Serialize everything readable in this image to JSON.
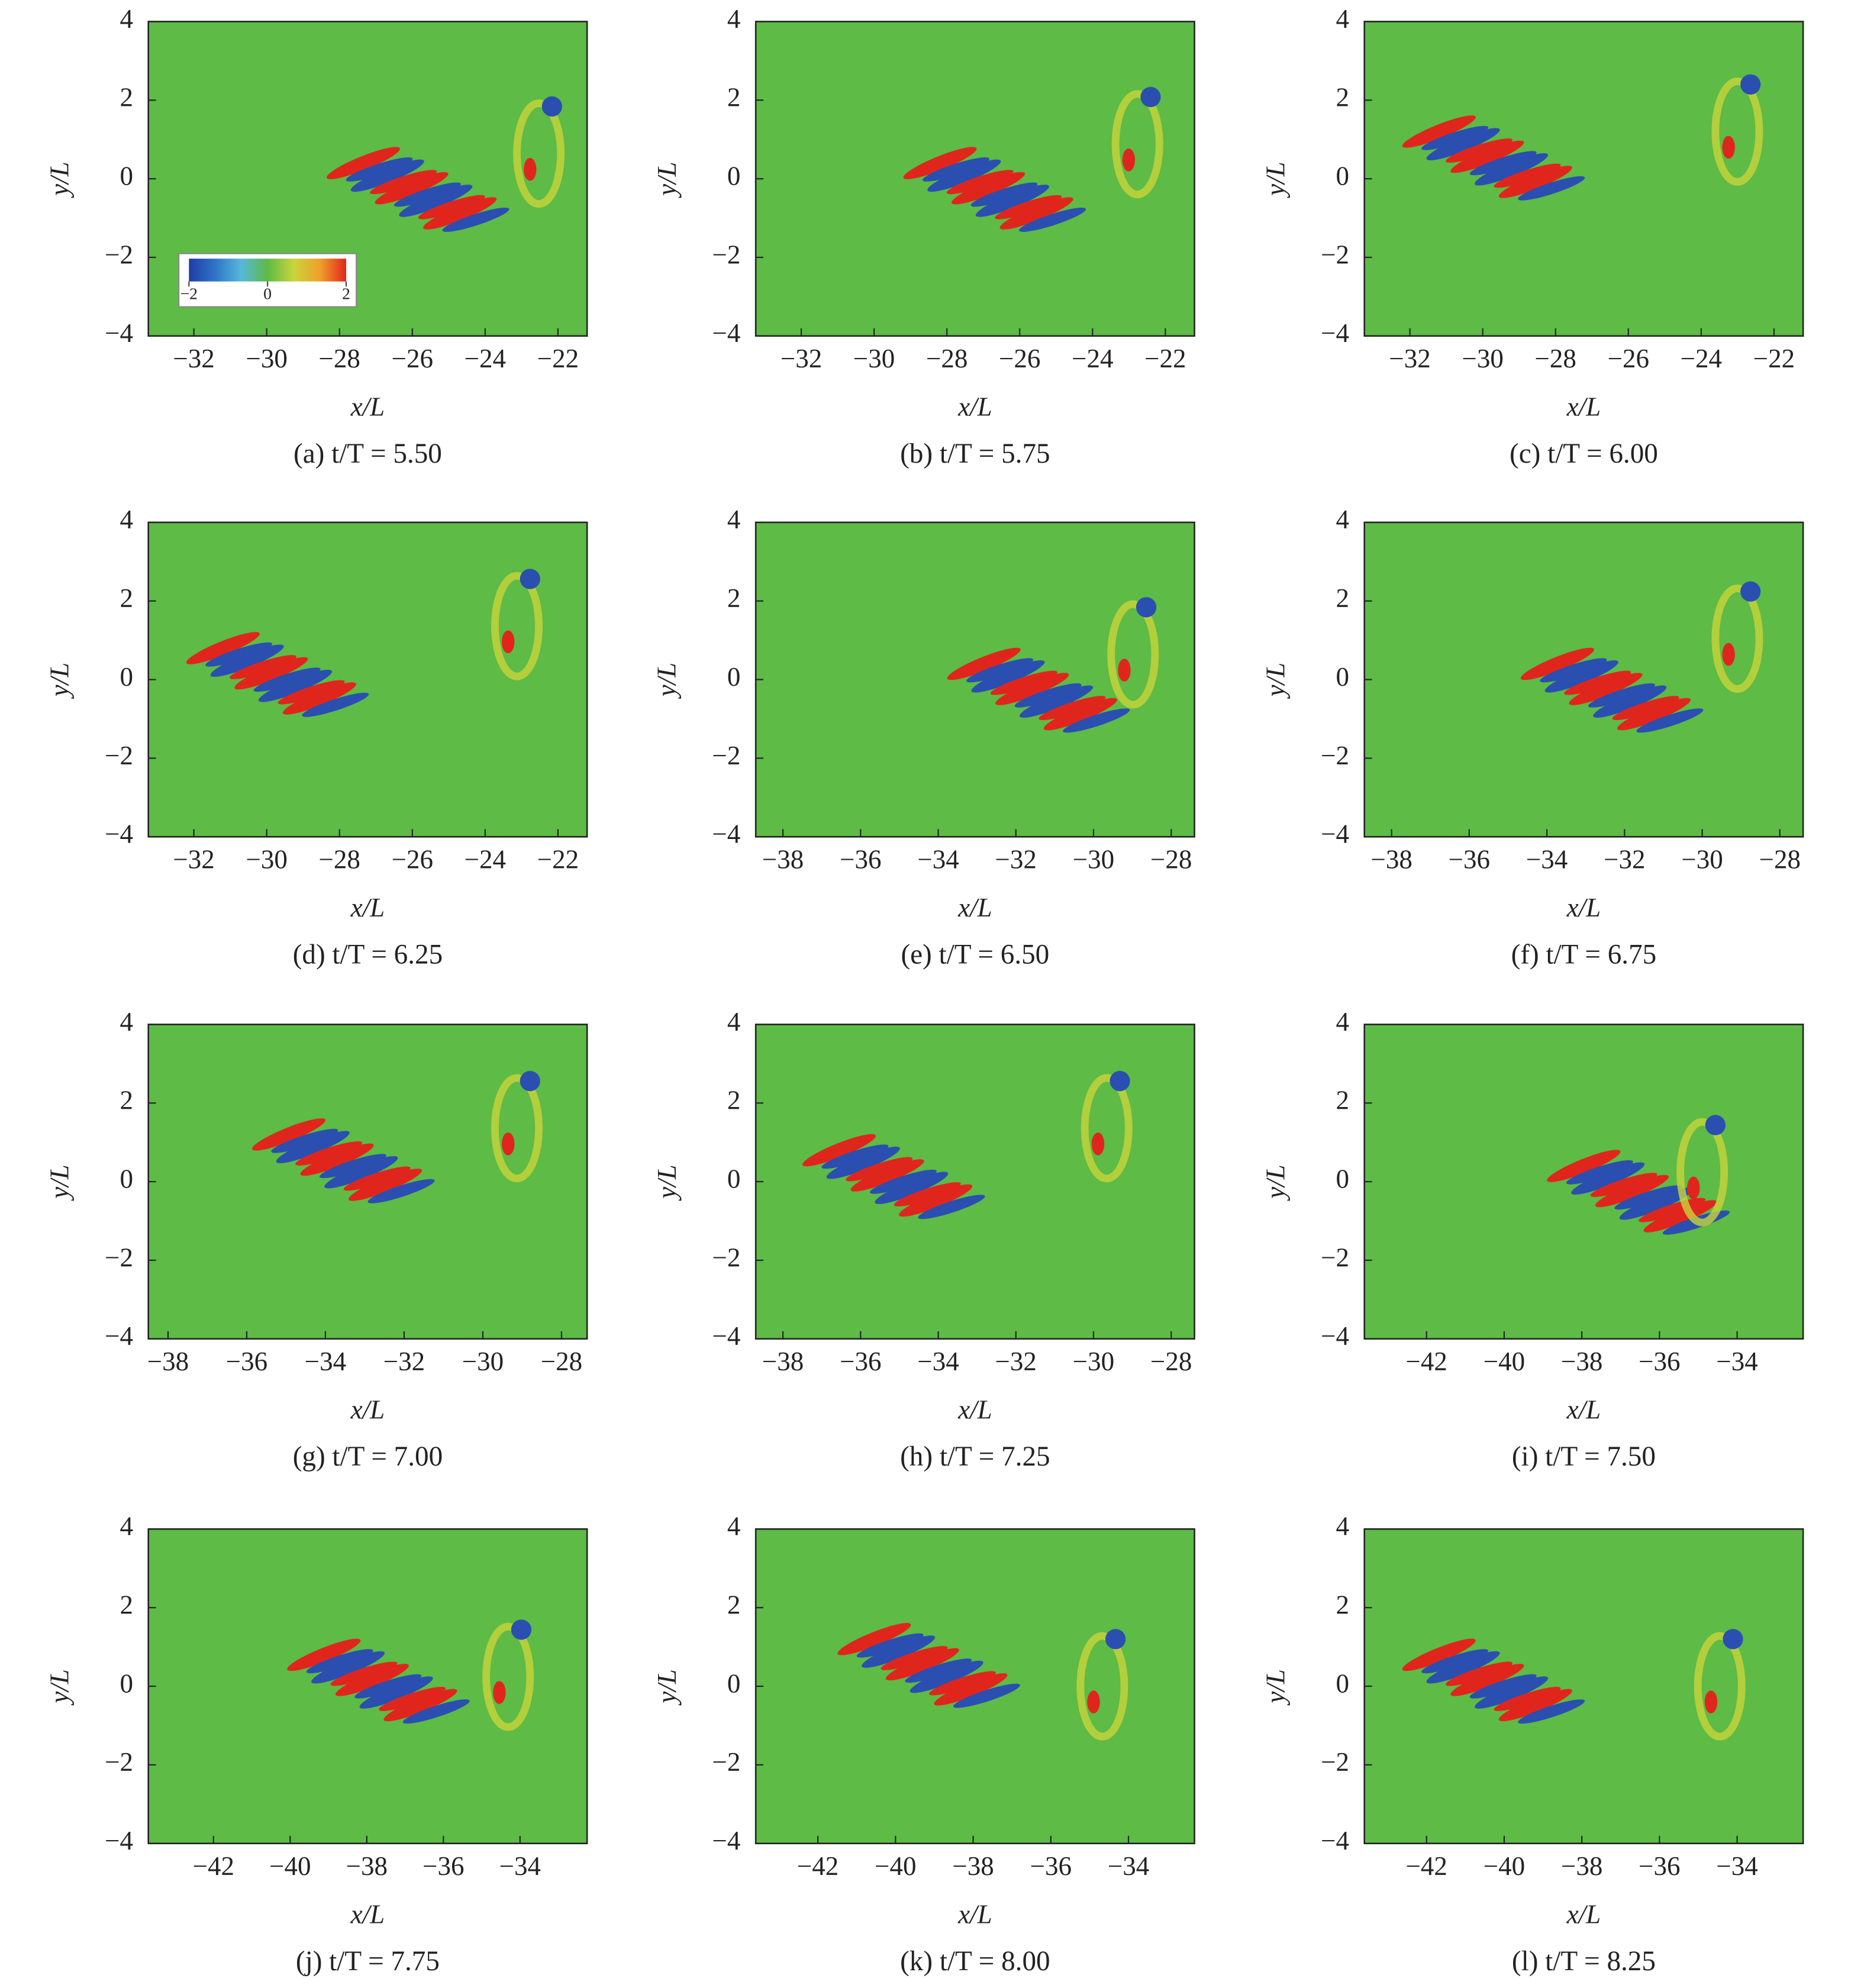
{
  "chart_data": [
    {
      "type": "contour",
      "xlabel": "x/L",
      "ylabel": "y/L",
      "caption": "(a) t/T = 5.50",
      "xlim": [
        -33.25,
        -21.2
      ],
      "ylim": [
        -4,
        4
      ],
      "xticks": [
        {
          "value": -32,
          "label": "−32"
        },
        {
          "value": -30,
          "label": "−30"
        },
        {
          "value": -28,
          "label": "−28"
        },
        {
          "value": -26,
          "label": "−26"
        },
        {
          "value": -24,
          "label": "−24"
        },
        {
          "value": -22,
          "label": "−22"
        }
      ],
      "yticks": [
        {
          "value": -4,
          "label": "−4"
        },
        {
          "value": -2,
          "label": "−2"
        },
        0,
        2,
        4
      ],
      "colorbar": {
        "ticks": [
          {
            "value": -2,
            "label": "−2"
          },
          0,
          2
        ],
        "colormap": [
          "#1f3da8",
          "#2f74c8",
          "#56b8d8",
          "#5dbb46",
          "#c9d43a",
          "#f0a02a",
          "#e0261c"
        ]
      }
    },
    {
      "type": "contour",
      "xlabel": "x/L",
      "ylabel": "y/L",
      "caption": "(b) t/T = 5.75",
      "xlim": [
        -33.25,
        -21.2
      ],
      "ylim": [
        -4,
        4
      ],
      "xticks": [
        {
          "value": -32,
          "label": "−32"
        },
        {
          "value": -30,
          "label": "−30"
        },
        {
          "value": -28,
          "label": "−28"
        },
        {
          "value": -26,
          "label": "−26"
        },
        {
          "value": -24,
          "label": "−24"
        },
        {
          "value": -22,
          "label": "−22"
        }
      ],
      "yticks": [
        {
          "value": -4,
          "label": "−4"
        },
        {
          "value": -2,
          "label": "−2"
        },
        0,
        2,
        4
      ]
    },
    {
      "type": "contour",
      "xlabel": "x/L",
      "ylabel": "y/L",
      "caption": "(c) t/T = 6.00",
      "xlim": [
        -33.25,
        -21.2
      ],
      "ylim": [
        -4,
        4
      ],
      "xticks": [
        {
          "value": -32,
          "label": "−32"
        },
        {
          "value": -30,
          "label": "−30"
        },
        {
          "value": -28,
          "label": "−28"
        },
        {
          "value": -26,
          "label": "−26"
        },
        {
          "value": -24,
          "label": "−24"
        },
        {
          "value": -22,
          "label": "−22"
        }
      ],
      "yticks": [
        {
          "value": -4,
          "label": "−4"
        },
        {
          "value": -2,
          "label": "−2"
        },
        0,
        2,
        4
      ]
    },
    {
      "type": "contour",
      "xlabel": "x/L",
      "ylabel": "y/L",
      "caption": "(d) t/T = 6.25",
      "xlim": [
        -33.25,
        -21.2
      ],
      "ylim": [
        -4,
        4
      ],
      "xticks": [
        {
          "value": -32,
          "label": "−32"
        },
        {
          "value": -30,
          "label": "−30"
        },
        {
          "value": -28,
          "label": "−28"
        },
        {
          "value": -26,
          "label": "−26"
        },
        {
          "value": -24,
          "label": "−24"
        },
        {
          "value": -22,
          "label": "−22"
        }
      ],
      "yticks": [
        {
          "value": -4,
          "label": "−4"
        },
        {
          "value": -2,
          "label": "−2"
        },
        0,
        2,
        4
      ]
    },
    {
      "type": "contour",
      "xlabel": "x/L",
      "ylabel": "y/L",
      "caption": "(e) t/T = 6.50",
      "xlim": [
        -38.7,
        -27.4
      ],
      "ylim": [
        -4,
        4
      ],
      "xticks": [
        {
          "value": -38,
          "label": "−38"
        },
        {
          "value": -36,
          "label": "−36"
        },
        {
          "value": -34,
          "label": "−34"
        },
        {
          "value": -32,
          "label": "−32"
        },
        {
          "value": -30,
          "label": "−30"
        },
        {
          "value": -28,
          "label": "−28"
        }
      ],
      "yticks": [
        {
          "value": -4,
          "label": "−4"
        },
        {
          "value": -2,
          "label": "−2"
        },
        0,
        2,
        4
      ]
    },
    {
      "type": "contour",
      "xlabel": "x/L",
      "ylabel": "y/L",
      "caption": "(f) t/T = 6.75",
      "xlim": [
        -38.7,
        -27.4
      ],
      "ylim": [
        -4,
        4
      ],
      "xticks": [
        {
          "value": -38,
          "label": "−38"
        },
        {
          "value": -36,
          "label": "−36"
        },
        {
          "value": -34,
          "label": "−34"
        },
        {
          "value": -32,
          "label": "−32"
        },
        {
          "value": -30,
          "label": "−30"
        },
        {
          "value": -28,
          "label": "−28"
        }
      ],
      "yticks": [
        {
          "value": -4,
          "label": "−4"
        },
        {
          "value": -2,
          "label": "−2"
        },
        0,
        2,
        4
      ]
    },
    {
      "type": "contour",
      "xlabel": "x/L",
      "ylabel": "y/L",
      "caption": "(g) t/T = 7.00",
      "xlim": [
        -38.5,
        -27.35
      ],
      "ylim": [
        -4,
        4
      ],
      "xticks": [
        {
          "value": -38,
          "label": "−38"
        },
        {
          "value": -36,
          "label": "−36"
        },
        {
          "value": -34,
          "label": "−34"
        },
        {
          "value": -32,
          "label": "−32"
        },
        {
          "value": -30,
          "label": "−30"
        },
        {
          "value": -28,
          "label": "−28"
        }
      ],
      "yticks": [
        {
          "value": -4,
          "label": "−4"
        },
        {
          "value": -2,
          "label": "−2"
        },
        0,
        2,
        4
      ]
    },
    {
      "type": "contour",
      "xlabel": "x/L",
      "ylabel": "y/L",
      "caption": "(h) t/T = 7.25",
      "xlim": [
        -38.7,
        -27.4
      ],
      "ylim": [
        -4,
        4
      ],
      "xticks": [
        {
          "value": -38,
          "label": "−38"
        },
        {
          "value": -36,
          "label": "−36"
        },
        {
          "value": -34,
          "label": "−34"
        },
        {
          "value": -32,
          "label": "−32"
        },
        {
          "value": -30,
          "label": "−30"
        },
        {
          "value": -28,
          "label": "−28"
        }
      ],
      "yticks": [
        {
          "value": -4,
          "label": "−4"
        },
        {
          "value": -2,
          "label": "−2"
        },
        0,
        2,
        4
      ]
    },
    {
      "type": "contour",
      "xlabel": "x/L",
      "ylabel": "y/L",
      "caption": "(i) t/T = 7.50",
      "xlim": [
        -43.6,
        -32.3
      ],
      "ylim": [
        -4,
        4
      ],
      "xticks": [
        {
          "value": -42,
          "label": "−42"
        },
        {
          "value": -40,
          "label": "−40"
        },
        {
          "value": -38,
          "label": "−38"
        },
        {
          "value": -36,
          "label": "−36"
        },
        {
          "value": -34,
          "label": "−34"
        }
      ],
      "yticks": [
        {
          "value": -4,
          "label": "−4"
        },
        {
          "value": -2,
          "label": "−2"
        },
        0,
        2,
        4
      ]
    },
    {
      "type": "contour",
      "xlabel": "x/L",
      "ylabel": "y/L",
      "caption": "(j) t/T = 7.75",
      "xlim": [
        -43.7,
        -32.25
      ],
      "ylim": [
        -4,
        4
      ],
      "xticks": [
        {
          "value": -42,
          "label": "−42"
        },
        {
          "value": -40,
          "label": "−40"
        },
        {
          "value": -38,
          "label": "−38"
        },
        {
          "value": -36,
          "label": "−36"
        },
        {
          "value": -34,
          "label": "−34"
        }
      ],
      "yticks": [
        {
          "value": -4,
          "label": "−4"
        },
        {
          "value": -2,
          "label": "−2"
        },
        0,
        2,
        4
      ]
    },
    {
      "type": "contour",
      "xlabel": "x/L",
      "ylabel": "y/L",
      "caption": "(k) t/T = 8.00",
      "xlim": [
        -43.6,
        -32.3
      ],
      "ylim": [
        -4,
        4
      ],
      "xticks": [
        {
          "value": -42,
          "label": "−42"
        },
        {
          "value": -40,
          "label": "−40"
        },
        {
          "value": -38,
          "label": "−38"
        },
        {
          "value": -36,
          "label": "−36"
        },
        {
          "value": -34,
          "label": "−34"
        }
      ],
      "yticks": [
        {
          "value": -4,
          "label": "−4"
        },
        {
          "value": -2,
          "label": "−2"
        },
        0,
        2,
        4
      ]
    },
    {
      "type": "contour",
      "xlabel": "x/L",
      "ylabel": "y/L",
      "caption": "(l) t/T = 8.25",
      "xlim": [
        -43.6,
        -32.3
      ],
      "ylim": [
        -4,
        4
      ],
      "xticks": [
        {
          "value": -42,
          "label": "−42"
        },
        {
          "value": -40,
          "label": "−40"
        },
        {
          "value": -38,
          "label": "−38"
        },
        {
          "value": -36,
          "label": "−36"
        },
        {
          "value": -34,
          "label": "−34"
        }
      ],
      "yticks": [
        {
          "value": -4,
          "label": "−4"
        },
        {
          "value": -2,
          "label": "−2"
        },
        0,
        2,
        4
      ]
    }
  ]
}
